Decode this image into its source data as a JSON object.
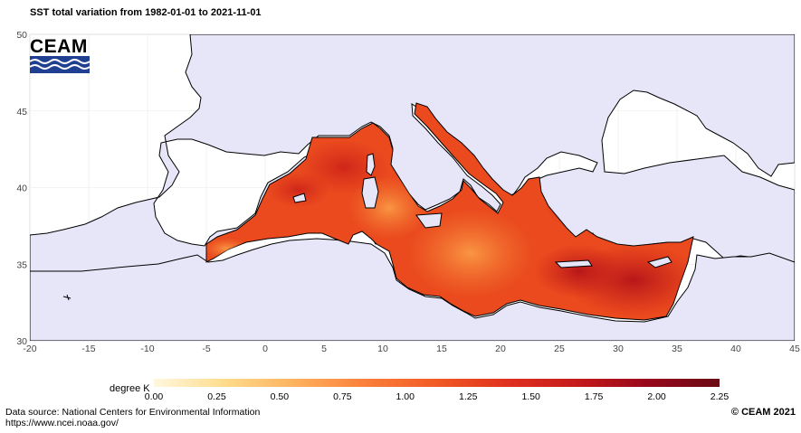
{
  "title": "SST total variation from  1982-01-01 to 2021-11-01",
  "logo": {
    "text": "CEAM"
  },
  "axes": {
    "x_ticks": [
      "-20",
      "-15",
      "-10",
      "-5",
      "0",
      "5",
      "10",
      "15",
      "20",
      "25",
      "30",
      "35",
      "40",
      "45"
    ],
    "y_ticks": [
      "30",
      "35",
      "40",
      "45",
      "50"
    ],
    "x_range": [
      -20,
      45
    ],
    "y_range": [
      30,
      50
    ]
  },
  "colorbar": {
    "label": "degree K",
    "ticks": [
      "0.00",
      "0.25",
      "0.50",
      "0.75",
      "1.00",
      "1.25",
      "1.50",
      "1.75",
      "2.00",
      "2.25"
    ],
    "range": [
      0,
      2.25
    ],
    "colors": [
      "#fff7df",
      "#fedc8c",
      "#fdb15d",
      "#fa7f3a",
      "#f15a24",
      "#e0301e",
      "#c41a1a",
      "#96071c",
      "#6b0a14"
    ]
  },
  "colors": {
    "land": "#e6e6f8",
    "sea_other": "#ffffff",
    "mediterranean_base": "#ea4a1e"
  },
  "footer": {
    "source_line1": "Data source: National Centers for Environmental Information",
    "source_line2": "https://www.ncei.noaa.gov/",
    "copyright": "© CEAM 2021"
  }
}
